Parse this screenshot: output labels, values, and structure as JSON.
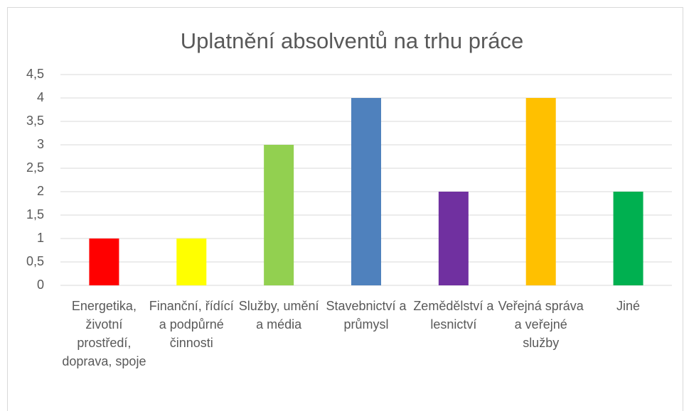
{
  "chart_data": {
    "type": "bar",
    "title": "Uplatnění absolventů na trhu práce",
    "categories": [
      "Energetika, životní prostředí, doprava, spoje",
      "Finanční, řídící a podpůrné činnosti",
      "Služby, umění a média",
      "Stavebnictví a průmysl",
      "Zemědělství a lesnictví",
      "Veřejná správa a veřejné služby",
      "Jiné"
    ],
    "values": [
      1,
      1,
      3,
      4,
      2,
      4,
      2
    ],
    "colors": [
      "#ff0000",
      "#ffff00",
      "#92d050",
      "#4f81bd",
      "#7030a0",
      "#ffc000",
      "#00b050"
    ],
    "ylim": [
      0,
      4.5
    ],
    "yticks": [
      0,
      {
        "value": 0.5,
        "label": "0,5"
      },
      1,
      {
        "value": 1.5,
        "label": "1,5"
      },
      2,
      {
        "value": 2.5,
        "label": "2,5"
      },
      3,
      {
        "value": 3.5,
        "label": "3,5"
      },
      4,
      {
        "value": 4.5,
        "label": "4,5"
      }
    ],
    "grid": true
  }
}
